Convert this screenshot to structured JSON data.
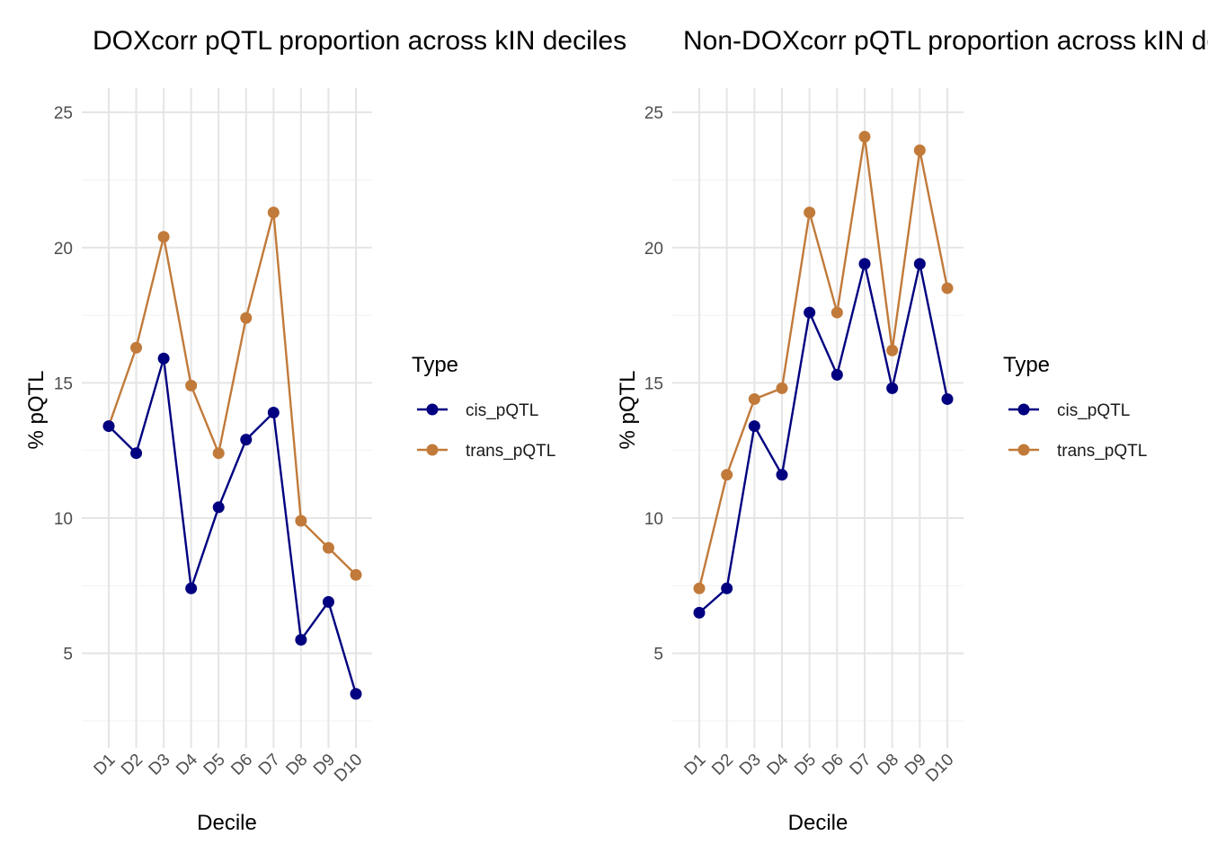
{
  "colors": {
    "cis_pQTL": "#000080",
    "trans_pQTL": "#C17A3A"
  },
  "legend": {
    "title": "Type",
    "entries": [
      "cis_pQTL",
      "trans_pQTL"
    ]
  },
  "chart_data": [
    {
      "type": "line",
      "title": "DOXcorr pQTL proportion across kIN deciles",
      "xlabel": "Decile",
      "ylabel": "% pQTL",
      "categories": [
        "D1",
        "D2",
        "D3",
        "D4",
        "D5",
        "D6",
        "D7",
        "D8",
        "D9",
        "D10"
      ],
      "yticks": [
        5,
        10,
        15,
        20,
        25
      ],
      "ylim": [
        1.5,
        26.5
      ],
      "grid": true,
      "legend_position": "right",
      "series": [
        {
          "name": "cis_pQTL",
          "values": [
            13.4,
            12.4,
            15.9,
            7.4,
            10.4,
            12.9,
            13.9,
            5.5,
            6.9,
            3.5
          ]
        },
        {
          "name": "trans_pQTL",
          "values": [
            13.4,
            16.3,
            20.4,
            14.9,
            12.4,
            17.4,
            21.3,
            9.9,
            8.9,
            7.9
          ]
        }
      ]
    },
    {
      "type": "line",
      "title": "Non-DOXcorr pQTL proportion across kIN deciles",
      "xlabel": "Decile",
      "ylabel": "% pQTL",
      "categories": [
        "D1",
        "D2",
        "D3",
        "D4",
        "D5",
        "D6",
        "D7",
        "D8",
        "D9",
        "D10"
      ],
      "yticks": [
        5,
        10,
        15,
        20,
        25
      ],
      "ylim": [
        1.5,
        26.5
      ],
      "grid": true,
      "legend_position": "right",
      "series": [
        {
          "name": "cis_pQTL",
          "values": [
            6.5,
            7.4,
            13.4,
            11.6,
            17.6,
            15.3,
            19.4,
            14.8,
            19.4,
            14.4
          ]
        },
        {
          "name": "trans_pQTL",
          "values": [
            7.4,
            11.6,
            14.4,
            14.8,
            21.3,
            17.6,
            24.1,
            16.2,
            23.6,
            18.5
          ]
        }
      ]
    }
  ]
}
